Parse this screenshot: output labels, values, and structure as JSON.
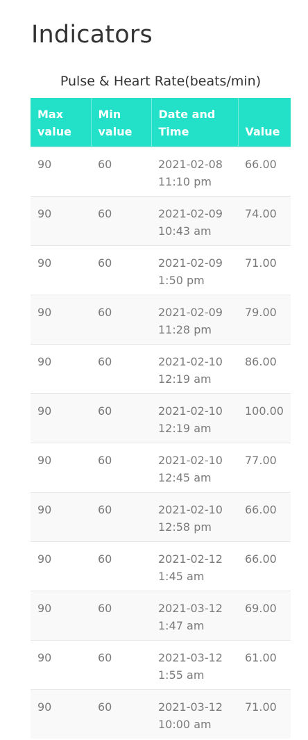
{
  "page": {
    "title": "Indicators"
  },
  "table": {
    "caption": "Pulse & Heart Rate(beats/min)",
    "headers": {
      "max": "Max value",
      "min": "Min value",
      "datetime": "Date and Time",
      "value": "Value"
    },
    "rows": [
      {
        "max": "90",
        "min": "60",
        "date": "2021-02-08",
        "time": "11:10 pm",
        "value": "66.00"
      },
      {
        "max": "90",
        "min": "60",
        "date": "2021-02-09",
        "time": "10:43 am",
        "value": "74.00"
      },
      {
        "max": "90",
        "min": "60",
        "date": "2021-02-09",
        "time": "1:50 pm",
        "value": "71.00"
      },
      {
        "max": "90",
        "min": "60",
        "date": "2021-02-09",
        "time": "11:28 pm",
        "value": "79.00"
      },
      {
        "max": "90",
        "min": "60",
        "date": "2021-02-10",
        "time": "12:19 am",
        "value": "86.00"
      },
      {
        "max": "90",
        "min": "60",
        "date": "2021-02-10",
        "time": "12:19 am",
        "value": "100.00"
      },
      {
        "max": "90",
        "min": "60",
        "date": "2021-02-10",
        "time": "12:45 am",
        "value": "77.00"
      },
      {
        "max": "90",
        "min": "60",
        "date": "2021-02-10",
        "time": "12:58 pm",
        "value": "66.00"
      },
      {
        "max": "90",
        "min": "60",
        "date": "2021-02-12",
        "time": "1:45 am",
        "value": "66.00"
      },
      {
        "max": "90",
        "min": "60",
        "date": "2021-03-12",
        "time": "1:47 am",
        "value": "69.00"
      },
      {
        "max": "90",
        "min": "60",
        "date": "2021-03-12",
        "time": "1:55 am",
        "value": "61.00"
      },
      {
        "max": "90",
        "min": "60",
        "date": "2021-03-12",
        "time": "10:00 am",
        "value": "71.00"
      }
    ]
  },
  "colors": {
    "header_bg": "#22e1c8",
    "header_text": "#ffffff",
    "cell_text": "#7a7a7a",
    "stripe": "#f9f9f9"
  }
}
